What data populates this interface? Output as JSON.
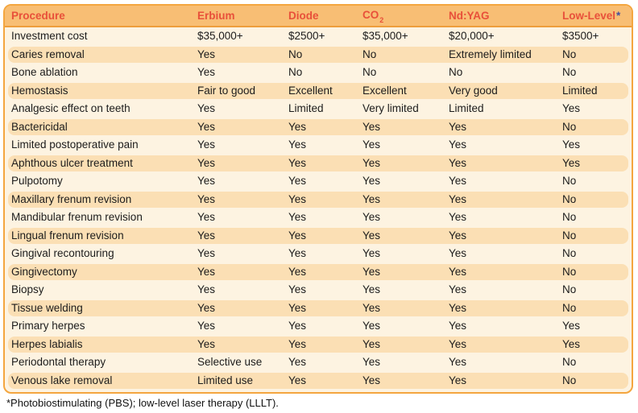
{
  "table": {
    "columns": [
      {
        "label": "Procedure"
      },
      {
        "label": "Erbium"
      },
      {
        "label": "Diode"
      },
      {
        "label": "CO",
        "subscript": "2"
      },
      {
        "label": "Nd:YAG"
      },
      {
        "label": "Low-Level",
        "marker": "*"
      }
    ],
    "rows": [
      {
        "procedure": "Investment cost",
        "values": [
          "$35,000+",
          "$2500+",
          "$35,000+",
          "$20,000+",
          "$3500+"
        ]
      },
      {
        "procedure": "Caries removal",
        "values": [
          "Yes",
          "No",
          "No",
          "Extremely limited",
          "No"
        ]
      },
      {
        "procedure": "Bone ablation",
        "values": [
          "Yes",
          "No",
          "No",
          "No",
          "No"
        ]
      },
      {
        "procedure": "Hemostasis",
        "values": [
          "Fair to good",
          "Excellent",
          "Excellent",
          "Very good",
          "Limited"
        ]
      },
      {
        "procedure": "Analgesic effect on teeth",
        "values": [
          "Yes",
          "Limited",
          "Very limited",
          "Limited",
          "Yes"
        ]
      },
      {
        "procedure": "Bactericidal",
        "values": [
          "Yes",
          "Yes",
          "Yes",
          "Yes",
          "No"
        ]
      },
      {
        "procedure": "Limited postoperative pain",
        "values": [
          "Yes",
          "Yes",
          "Yes",
          "Yes",
          "Yes"
        ]
      },
      {
        "procedure": "Aphthous ulcer treatment",
        "values": [
          "Yes",
          "Yes",
          "Yes",
          "Yes",
          "Yes"
        ]
      },
      {
        "procedure": "Pulpotomy",
        "values": [
          "Yes",
          "Yes",
          "Yes",
          "Yes",
          "No"
        ]
      },
      {
        "procedure": "Maxillary frenum revision",
        "values": [
          "Yes",
          "Yes",
          "Yes",
          "Yes",
          "No"
        ]
      },
      {
        "procedure": "Mandibular frenum revision",
        "values": [
          "Yes",
          "Yes",
          "Yes",
          "Yes",
          "No"
        ]
      },
      {
        "procedure": "Lingual frenum revision",
        "values": [
          "Yes",
          "Yes",
          "Yes",
          "Yes",
          "No"
        ]
      },
      {
        "procedure": "Gingival recontouring",
        "values": [
          "Yes",
          "Yes",
          "Yes",
          "Yes",
          "No"
        ]
      },
      {
        "procedure": "Gingivectomy",
        "values": [
          "Yes",
          "Yes",
          "Yes",
          "Yes",
          "No"
        ]
      },
      {
        "procedure": "Biopsy",
        "values": [
          "Yes",
          "Yes",
          "Yes",
          "Yes",
          "No"
        ]
      },
      {
        "procedure": "Tissue welding",
        "values": [
          "Yes",
          "Yes",
          "Yes",
          "Yes",
          "No"
        ]
      },
      {
        "procedure": "Primary herpes",
        "values": [
          "Yes",
          "Yes",
          "Yes",
          "Yes",
          "Yes"
        ]
      },
      {
        "procedure": "Herpes labialis",
        "values": [
          "Yes",
          "Yes",
          "Yes",
          "Yes",
          "Yes"
        ]
      },
      {
        "procedure": "Periodontal therapy",
        "values": [
          "Selective use",
          "Yes",
          "Yes",
          "Yes",
          "No"
        ]
      },
      {
        "procedure": "Venous lake removal",
        "values": [
          "Limited use",
          "Yes",
          "Yes",
          "Yes",
          "No"
        ]
      }
    ]
  },
  "footnote": "*Photobiostimulating (PBS); low-level laser therapy (LLLT).",
  "colors": {
    "header_bg": "#F8BE74",
    "header_text": "#E8503A",
    "asterisk": "#4450A0",
    "border": "#F4A63F",
    "header_rule": "#EE9E3C",
    "row_cream": "#FDF3E1",
    "row_peach": "#FBDFB4",
    "body_text": "#1C1C1C"
  }
}
